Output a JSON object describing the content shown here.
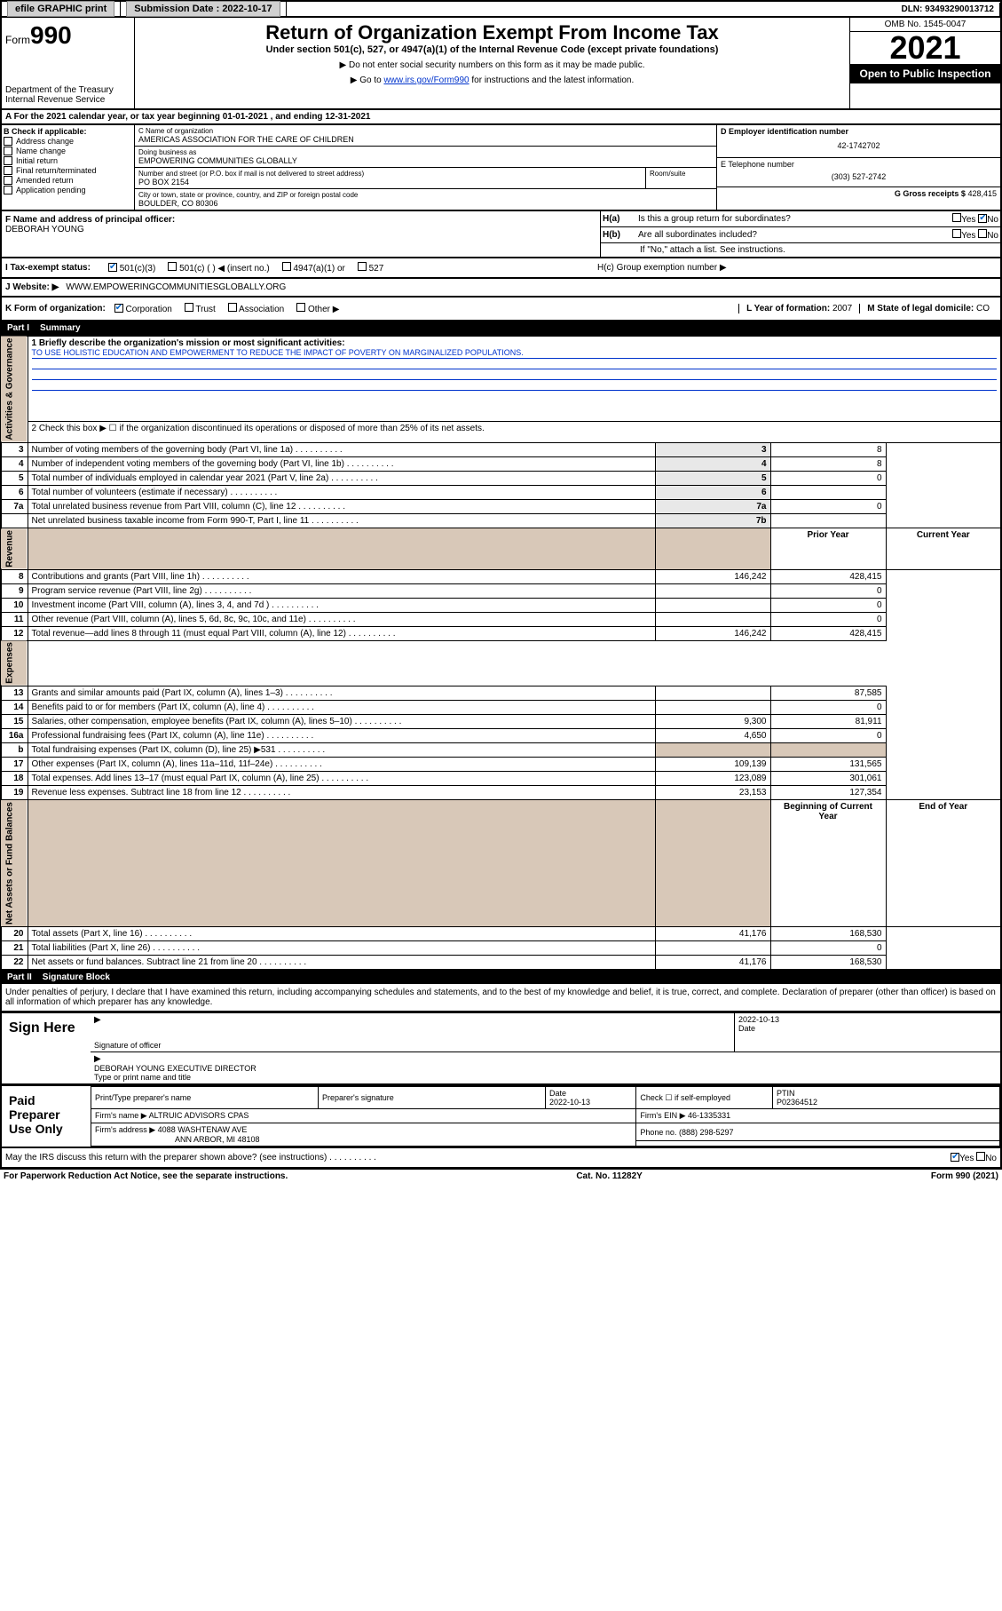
{
  "topbar": {
    "efile": "efile GRAPHIC print",
    "subdate_label": "Submission Date : 2022-10-17",
    "dln": "DLN: 93493290013712"
  },
  "header": {
    "form_label": "Form",
    "form_num": "990",
    "dept": "Department of the Treasury",
    "irs": "Internal Revenue Service",
    "title": "Return of Organization Exempt From Income Tax",
    "sub1": "Under section 501(c), 527, or 4947(a)(1) of the Internal Revenue Code (except private foundations)",
    "sub2": "▶ Do not enter social security numbers on this form as it may be made public.",
    "sub3_pre": "▶ Go to ",
    "sub3_link": "www.irs.gov/Form990",
    "sub3_post": " for instructions and the latest information.",
    "omb": "OMB No. 1545-0047",
    "year": "2021",
    "inspect": "Open to Public Inspection"
  },
  "line_a": "A For the 2021 calendar year, or tax year beginning 01-01-2021   , and ending 12-31-2021",
  "box_b": {
    "title": "B Check if applicable:",
    "items": [
      "Address change",
      "Name change",
      "Initial return",
      "Final return/terminated",
      "Amended return",
      "Application pending"
    ]
  },
  "box_c": {
    "name_label": "C Name of organization",
    "name": "AMERICAS ASSOCIATION FOR THE CARE OF CHILDREN",
    "dba_label": "Doing business as",
    "dba": "EMPOWERING COMMUNITIES GLOBALLY",
    "street_label": "Number and street (or P.O. box if mail is not delivered to street address)",
    "room_label": "Room/suite",
    "street": "PO BOX 2154",
    "city_label": "City or town, state or province, country, and ZIP or foreign postal code",
    "city": "BOULDER, CO  80306"
  },
  "box_d": {
    "label": "D Employer identification number",
    "value": "42-1742702"
  },
  "box_e": {
    "label": "E Telephone number",
    "value": "(303) 527-2742"
  },
  "box_g": {
    "label": "G Gross receipts $",
    "value": "428,415"
  },
  "box_f": {
    "label": "F Name and address of principal officer:",
    "value": "DEBORAH YOUNG"
  },
  "box_h": {
    "a_label": "H(a)  Is this a group return for subordinates?",
    "b_label": "H(b)  Are all subordinates included?",
    "b_note": "If \"No,\" attach a list. See instructions.",
    "c_label": "H(c)  Group exemption number ▶",
    "yes": "Yes",
    "no": "No"
  },
  "box_i": {
    "label": "I   Tax-exempt status:",
    "opts": [
      "501(c)(3)",
      "501(c) (  ) ◀ (insert no.)",
      "4947(a)(1) or",
      "527"
    ]
  },
  "box_j": {
    "label": "J   Website: ▶",
    "value": "WWW.EMPOWERINGCOMMUNITIESGLOBALLY.ORG"
  },
  "box_k": {
    "label": "K Form of organization:",
    "opts": [
      "Corporation",
      "Trust",
      "Association",
      "Other ▶"
    ]
  },
  "box_l": {
    "label": "L Year of formation:",
    "value": "2007"
  },
  "box_m": {
    "label": "M State of legal domicile:",
    "value": "CO"
  },
  "part1": {
    "label": "Part I",
    "title": "Summary"
  },
  "sections": {
    "ag": "Activities & Governance",
    "rev": "Revenue",
    "exp": "Expenses",
    "nab": "Net Assets or Fund Balances"
  },
  "summary": {
    "line1_label": "1  Briefly describe the organization's mission or most significant activities:",
    "line1_text": "TO USE HOLISTIC EDUCATION AND EMPOWERMENT TO REDUCE THE IMPACT OF POVERTY ON MARGINALIZED POPULATIONS.",
    "line2": "2   Check this box ▶ ☐  if the organization discontinued its operations or disposed of more than 25% of its net assets.",
    "rows_ag": [
      {
        "n": "3",
        "t": "Number of voting members of the governing body (Part VI, line 1a)",
        "box": "3",
        "v": "8"
      },
      {
        "n": "4",
        "t": "Number of independent voting members of the governing body (Part VI, line 1b)",
        "box": "4",
        "v": "8"
      },
      {
        "n": "5",
        "t": "Total number of individuals employed in calendar year 2021 (Part V, line 2a)",
        "box": "5",
        "v": "0"
      },
      {
        "n": "6",
        "t": "Total number of volunteers (estimate if necessary)",
        "box": "6",
        "v": ""
      },
      {
        "n": "7a",
        "t": "Total unrelated business revenue from Part VIII, column (C), line 12",
        "box": "7a",
        "v": "0"
      },
      {
        "n": "",
        "t": "Net unrelated business taxable income from Form 990-T, Part I, line 11",
        "box": "7b",
        "v": ""
      }
    ],
    "col_prior": "Prior Year",
    "col_current": "Current Year",
    "rows_rev": [
      {
        "n": "8",
        "t": "Contributions and grants (Part VIII, line 1h)",
        "p": "146,242",
        "c": "428,415"
      },
      {
        "n": "9",
        "t": "Program service revenue (Part VIII, line 2g)",
        "p": "",
        "c": "0"
      },
      {
        "n": "10",
        "t": "Investment income (Part VIII, column (A), lines 3, 4, and 7d )",
        "p": "",
        "c": "0"
      },
      {
        "n": "11",
        "t": "Other revenue (Part VIII, column (A), lines 5, 6d, 8c, 9c, 10c, and 11e)",
        "p": "",
        "c": "0"
      },
      {
        "n": "12",
        "t": "Total revenue—add lines 8 through 11 (must equal Part VIII, column (A), line 12)",
        "p": "146,242",
        "c": "428,415"
      }
    ],
    "rows_exp": [
      {
        "n": "13",
        "t": "Grants and similar amounts paid (Part IX, column (A), lines 1–3)",
        "p": "",
        "c": "87,585"
      },
      {
        "n": "14",
        "t": "Benefits paid to or for members (Part IX, column (A), line 4)",
        "p": "",
        "c": "0"
      },
      {
        "n": "15",
        "t": "Salaries, other compensation, employee benefits (Part IX, column (A), lines 5–10)",
        "p": "9,300",
        "c": "81,911"
      },
      {
        "n": "16a",
        "t": "Professional fundraising fees (Part IX, column (A), line 11e)",
        "p": "4,650",
        "c": "0"
      },
      {
        "n": "b",
        "t": "Total fundraising expenses (Part IX, column (D), line 25) ▶531",
        "p": "—shade—",
        "c": "—shade—"
      },
      {
        "n": "17",
        "t": "Other expenses (Part IX, column (A), lines 11a–11d, 11f–24e)",
        "p": "109,139",
        "c": "131,565"
      },
      {
        "n": "18",
        "t": "Total expenses. Add lines 13–17 (must equal Part IX, column (A), line 25)",
        "p": "123,089",
        "c": "301,061"
      },
      {
        "n": "19",
        "t": "Revenue less expenses. Subtract line 18 from line 12",
        "p": "23,153",
        "c": "127,354"
      }
    ],
    "col_begin": "Beginning of Current Year",
    "col_end": "End of Year",
    "rows_nab": [
      {
        "n": "20",
        "t": "Total assets (Part X, line 16)",
        "p": "41,176",
        "c": "168,530"
      },
      {
        "n": "21",
        "t": "Total liabilities (Part X, line 26)",
        "p": "",
        "c": "0"
      },
      {
        "n": "22",
        "t": "Net assets or fund balances. Subtract line 21 from line 20",
        "p": "41,176",
        "c": "168,530"
      }
    ]
  },
  "part2": {
    "label": "Part II",
    "title": "Signature Block"
  },
  "penalty": "Under penalties of perjury, I declare that I have examined this return, including accompanying schedules and statements, and to the best of my knowledge and belief, it is true, correct, and complete. Declaration of preparer (other than officer) is based on all information of which preparer has any knowledge.",
  "sign": {
    "here": "Sign Here",
    "sig_label": "Signature of officer",
    "date_label": "Date",
    "date_val": "2022-10-13",
    "name": "DEBORAH YOUNG  EXECUTIVE DIRECTOR",
    "name_label": "Type or print name and title"
  },
  "prep": {
    "title": "Paid Preparer Use Only",
    "headers": [
      "Print/Type preparer's name",
      "Preparer's signature",
      "Date",
      "",
      "PTIN"
    ],
    "date": "2022-10-13",
    "check_label": "Check ☐ if self-employed",
    "ptin": "P02364512",
    "firm_name_label": "Firm's name    ▶",
    "firm_name": "ALTRUIC ADVISORS CPAS",
    "firm_ein_label": "Firm's EIN ▶",
    "firm_ein": "46-1335331",
    "firm_addr_label": "Firm's address ▶",
    "firm_addr1": "4088 WASHTENAW AVE",
    "firm_addr2": "ANN ARBOR, MI  48108",
    "phone_label": "Phone no.",
    "phone": "(888) 298-5297"
  },
  "discuss": {
    "text": "May the IRS discuss this return with the preparer shown above? (see instructions)",
    "yes": "Yes",
    "no": "No"
  },
  "footer": {
    "left": "For Paperwork Reduction Act Notice, see the separate instructions.",
    "center": "Cat. No. 11282Y",
    "right": "Form 990 (2021)"
  },
  "colors": {
    "link": "#0033cc",
    "shade": "#d8c8b8",
    "check": "#0066cc"
  }
}
